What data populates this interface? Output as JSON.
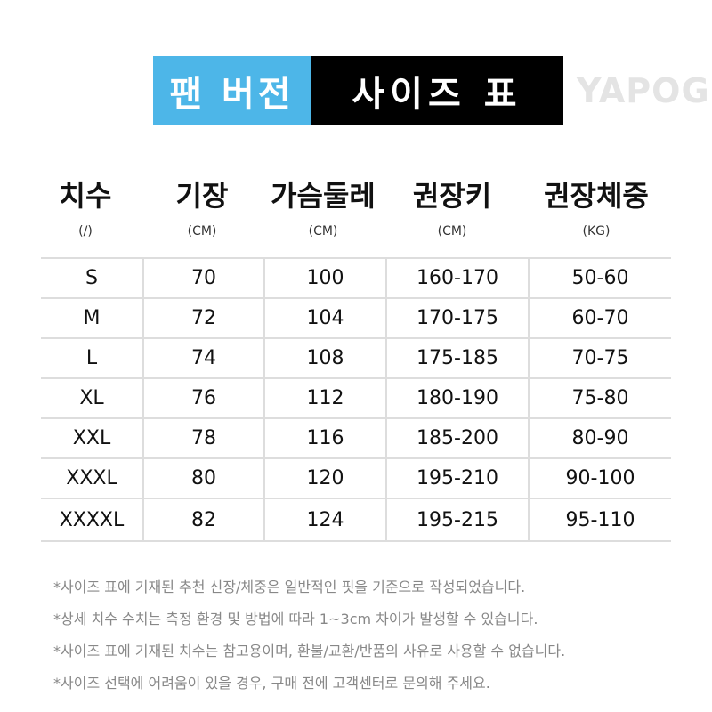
{
  "title": {
    "part1": "팬 버전",
    "part2": "사이즈 표",
    "colors": {
      "part1_bg": "#4db6e8",
      "part2_bg": "#000000"
    }
  },
  "headers": [
    {
      "label": "치수",
      "unit": "(/)"
    },
    {
      "label": "기장",
      "unit": "(CM)"
    },
    {
      "label": "가슴둘레",
      "unit": "(CM)"
    },
    {
      "label": "권장키",
      "unit": "(CM)"
    },
    {
      "label": "권장체중",
      "unit": "(KG)"
    }
  ],
  "rows": [
    [
      "S",
      "70",
      "100",
      "160-170",
      "50-60"
    ],
    [
      "M",
      "72",
      "104",
      "170-175",
      "60-70"
    ],
    [
      "L",
      "74",
      "108",
      "175-185",
      "70-75"
    ],
    [
      "XL",
      "76",
      "112",
      "180-190",
      "75-80"
    ],
    [
      "XXL",
      "78",
      "116",
      "185-200",
      "80-90"
    ],
    [
      "XXXL",
      "80",
      "120",
      "195-210",
      "90-100"
    ],
    [
      "XXXXL",
      "82",
      "124",
      "195-215",
      "95-110"
    ]
  ],
  "watermark": "YAPOGI",
  "notes": [
    "*사이즈 표에 기재된 추천 신장/체중은 일반적인 핏을 기준으로 작성되었습니다.",
    "*상세 치수 수치는 측정 환경 및 방법에 따라 1~3cm 차이가 발생할 수 있습니다.",
    "*사이즈 표에 기재된 치수는 참고용이며, 환불/교환/반품의 사유로 사용할 수 없습니다.",
    "*사이즈 선택에 어려움이 있을 경우, 구매 전에 고객센터로 문의해 주세요."
  ]
}
